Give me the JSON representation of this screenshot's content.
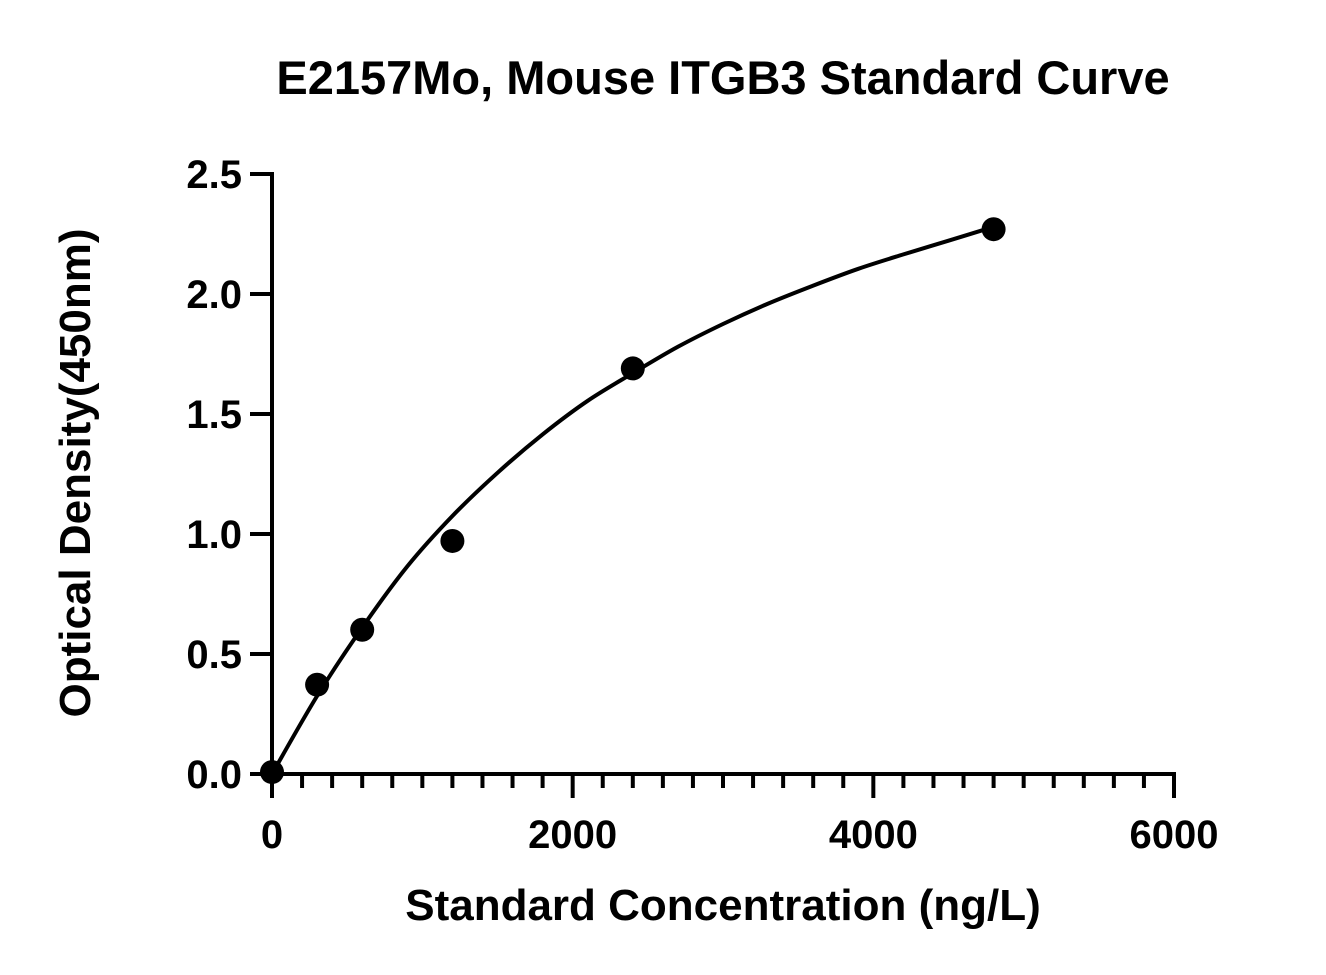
{
  "chart_data": {
    "type": "scatter",
    "title": "E2157Mo, Mouse ITGB3 Standard Curve",
    "xlabel": "Standard Concentration (ng/L)",
    "ylabel": "Optical Density(450nm)",
    "xlim": [
      0,
      6000
    ],
    "ylim": [
      0,
      2.5
    ],
    "x_ticks": [
      0,
      2000,
      4000,
      6000
    ],
    "x_tick_labels": [
      "0",
      "2000",
      "4000",
      "6000"
    ],
    "x_minor_step": 200,
    "y_ticks": [
      0,
      0.5,
      1.0,
      1.5,
      2.0,
      2.5
    ],
    "y_tick_labels": [
      "0.0",
      "0.5",
      "1.0",
      "1.5",
      "2.0",
      "2.5"
    ],
    "grid": false,
    "legend": "none",
    "series": [
      {
        "x": [
          0,
          300,
          600,
          1200,
          2400,
          4800
        ],
        "y": [
          0.008,
          0.372,
          0.601,
          0.971,
          1.69,
          2.27
        ],
        "marker": "circle",
        "fit_curve": {
          "x": [
            0,
            300,
            600,
            900,
            1200,
            1500,
            1800,
            2100,
            2400,
            2700,
            3000,
            3300,
            3600,
            3900,
            4200,
            4500,
            4800
          ],
          "y": [
            0.0,
            0.325,
            0.61,
            0.865,
            1.075,
            1.255,
            1.415,
            1.555,
            1.67,
            1.78,
            1.875,
            1.96,
            2.035,
            2.105,
            2.165,
            2.222,
            2.28
          ]
        }
      }
    ],
    "colors": {
      "marker": "#000000",
      "line": "#000000",
      "axis": "#000000"
    }
  }
}
